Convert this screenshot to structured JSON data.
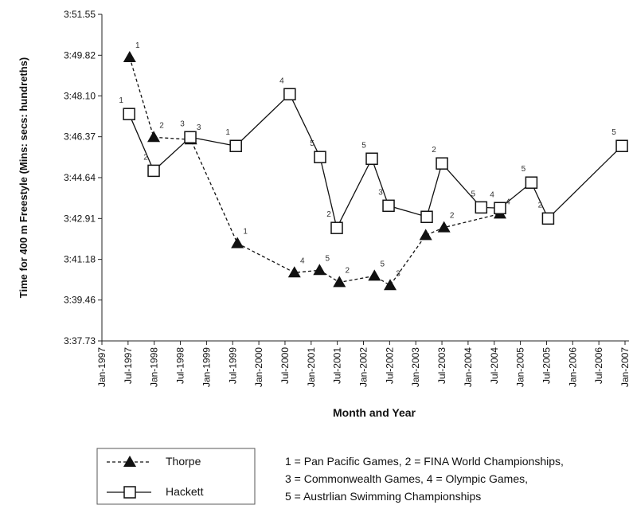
{
  "chart_data": {
    "type": "line",
    "y_label": "Time for 400 m Freestyle (Mins: secs: hundreths)",
    "x_label": "Month and Year",
    "ylim": [
      217.73,
      231.55
    ],
    "yticks": [
      {
        "value": 217.73,
        "label": "3:37.73"
      },
      {
        "value": 219.46,
        "label": "3:39.46"
      },
      {
        "value": 221.18,
        "label": "3:41.18"
      },
      {
        "value": 222.91,
        "label": "3:42.91"
      },
      {
        "value": 224.64,
        "label": "3:44.64"
      },
      {
        "value": 226.37,
        "label": "3:46.37"
      },
      {
        "value": 228.1,
        "label": "3:48.10"
      },
      {
        "value": 229.82,
        "label": "3:49.82"
      },
      {
        "value": 231.55,
        "label": "3:51.55"
      }
    ],
    "xlim": [
      1997,
      2007
    ],
    "xticks": [
      {
        "value": 1997,
        "label": "Jan-1997"
      },
      {
        "value": 1997.5,
        "label": "Jul-1997"
      },
      {
        "value": 1998,
        "label": "Jan-1998"
      },
      {
        "value": 1998.5,
        "label": "Jul-1998"
      },
      {
        "value": 1999,
        "label": "Jan-1999"
      },
      {
        "value": 1999.5,
        "label": "Jul-1999"
      },
      {
        "value": 2000,
        "label": "Jan-2000"
      },
      {
        "value": 2000.5,
        "label": "Jul-2000"
      },
      {
        "value": 2001,
        "label": "Jan-2001"
      },
      {
        "value": 2001.5,
        "label": "Jul-2001"
      },
      {
        "value": 2002,
        "label": "Jan-2002"
      },
      {
        "value": 2002.5,
        "label": "Jul-2002"
      },
      {
        "value": 2003,
        "label": "Jan-2003"
      },
      {
        "value": 2003.5,
        "label": "Jul-2003"
      },
      {
        "value": 2004,
        "label": "Jan-2004"
      },
      {
        "value": 2004.5,
        "label": "Jul-2004"
      },
      {
        "value": 2005,
        "label": "Jan-2005"
      },
      {
        "value": 2005.5,
        "label": "Jul-2005"
      },
      {
        "value": 2006,
        "label": "Jan-2006"
      },
      {
        "value": 2006.5,
        "label": "Jul-2006"
      },
      {
        "value": 2007,
        "label": "Jan-2007"
      }
    ],
    "series": [
      {
        "name": "Thorpe",
        "color": "#111111",
        "marker": "triangle",
        "dashed": true,
        "x": [
          1997.53,
          1997.99,
          1998.7,
          1999.59,
          2000.68,
          2001.16,
          2001.54,
          2002.21,
          2002.51,
          2003.19,
          2003.54,
          2004.61
        ],
        "values": [
          229.73,
          226.35,
          226.25,
          221.86,
          220.62,
          220.72,
          220.21,
          220.48,
          220.08,
          222.2,
          222.53,
          223.11
        ],
        "events": [
          "1",
          "2",
          "3",
          "1",
          "4",
          "5",
          "2",
          "5",
          "3",
          null,
          "2",
          "4"
        ]
      },
      {
        "name": "Hackett",
        "color": "#111111",
        "marker": "square",
        "dashed": false,
        "x": [
          1997.52,
          1997.99,
          1998.69,
          1999.56,
          2000.59,
          2001.17,
          2001.49,
          2002.16,
          2002.48,
          2003.21,
          2003.5,
          2004.25,
          2004.61,
          2005.21,
          2005.53,
          2006.94
        ],
        "values": [
          227.33,
          224.93,
          226.35,
          225.98,
          228.17,
          225.51,
          222.51,
          225.44,
          223.45,
          222.98,
          225.24,
          223.38,
          223.35,
          224.43,
          222.91,
          225.98
        ],
        "events": [
          "1",
          "2",
          "3",
          "1",
          "4",
          "5",
          "2",
          "5",
          "3",
          null,
          "2",
          "5",
          "4",
          "5",
          "2",
          "5"
        ]
      }
    ],
    "notes": [
      "1 = Pan Pacific Games, 2 = FINA World Championships,",
      "3 = Commonwealth Games, 4 = Olympic Games,",
      "5 = Austrlian Swimming Championships"
    ]
  }
}
